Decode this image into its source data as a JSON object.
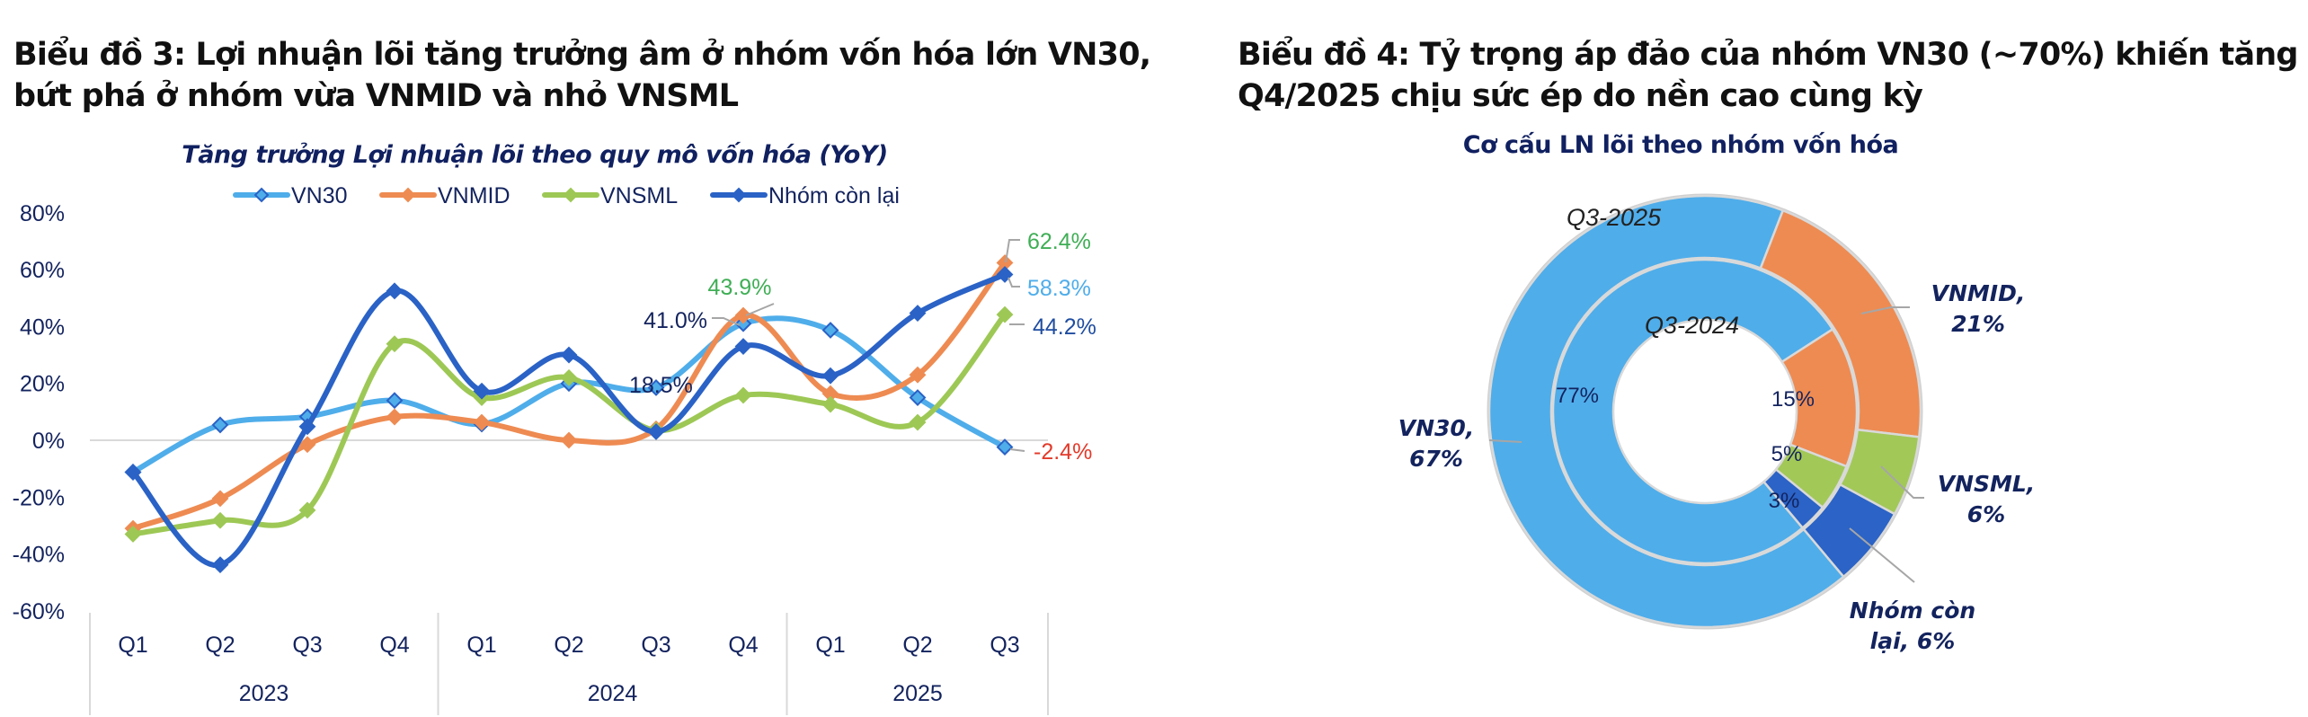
{
  "left": {
    "title_line1": "Biểu đồ 3: Lợi nhuận lõi tăng trưởng âm ở nhóm vốn hóa lớn VN30,",
    "title_line2": "bứt phá ở nhóm vừa VNMID và nhỏ VNSML"
  },
  "right": {
    "title_line1": "Biểu đồ 4: Tỷ trọng áp đảo của nhóm VN30 (~70%) khiến tăng trưởng",
    "title_line2": "Q4/2025 chịu sức ép do nền cao cùng kỳ"
  },
  "chart_data": [
    {
      "type": "line",
      "title": "Tăng trưởng Lợi nhuận lõi theo quy mô vốn hóa (YoY)",
      "xlabel": "",
      "ylabel": "",
      "ylim": [
        -60,
        80
      ],
      "yticks": [
        80,
        60,
        40,
        20,
        0,
        -20,
        -40,
        -60
      ],
      "ytick_labels": [
        "80%",
        "60%",
        "40%",
        "20%",
        "0%",
        "-20%",
        "-40%",
        "-60%"
      ],
      "categories": [
        "Q1",
        "Q2",
        "Q3",
        "Q4",
        "Q1",
        "Q2",
        "Q3",
        "Q4",
        "Q1",
        "Q2",
        "Q3"
      ],
      "year_groups": [
        {
          "label": "2023",
          "count": 4
        },
        {
          "label": "2024",
          "count": 4
        },
        {
          "label": "2025",
          "count": 3
        }
      ],
      "grid": "zero-line only",
      "legend_position": "top-center",
      "series": [
        {
          "name": "VN30",
          "color": "#4FADEA",
          "marker": "hollow-diamond",
          "values": [
            -11.2,
            5.4,
            8.3,
            14.0,
            5.7,
            20.0,
            18.5,
            41.0,
            38.7,
            15.0,
            -2.4
          ]
        },
        {
          "name": "VNMID",
          "color": "#EE8B52",
          "marker": "diamond",
          "values": [
            -31.0,
            -20.5,
            -1.5,
            8.2,
            6.3,
            0.0,
            4.0,
            43.9,
            16.4,
            23.0,
            62.4
          ]
        },
        {
          "name": "VNSML",
          "color": "#9DC855",
          "marker": "diamond",
          "values": [
            -33.0,
            -28.2,
            -24.6,
            33.9,
            15.0,
            22.0,
            3.5,
            15.8,
            12.6,
            6.3,
            44.2
          ]
        },
        {
          "name": "Nhóm còn lại",
          "color": "#2A62C6",
          "marker": "diamond",
          "values": [
            -11.2,
            -43.8,
            4.8,
            52.5,
            17.3,
            30.0,
            3.0,
            33.0,
            22.7,
            44.7,
            58.3
          ]
        }
      ],
      "annotations": [
        {
          "text": "18.5%",
          "category_index": 6,
          "series": "VN30",
          "color": "#13235E"
        },
        {
          "text": "41.0%",
          "category_index": 7,
          "series": "VN30",
          "color": "#13235E"
        },
        {
          "text": "43.9%",
          "category_index": 7,
          "series": "VNMID",
          "color": "#3FAE55"
        },
        {
          "text": "62.4%",
          "category_index": 10,
          "series": "VNMID",
          "color": "#3FAE55"
        },
        {
          "text": "58.3%",
          "category_index": 10,
          "series": "Nhóm còn lại",
          "color": "#4FADEA"
        },
        {
          "text": "44.2%",
          "category_index": 10,
          "series": "VNSML",
          "color": "#1F4DA0"
        },
        {
          "text": "-2.4%",
          "category_index": 10,
          "series": "VN30",
          "color": "#E23A2A"
        }
      ]
    },
    {
      "type": "pie",
      "subtype": "double-donut",
      "title": "Cơ cấu LN lõi theo nhóm vốn hóa",
      "categories": [
        "VN30",
        "VNMID",
        "VNSML",
        "Nhóm còn lại"
      ],
      "colors": [
        "#4FADEA",
        "#EE8B52",
        "#A2C858",
        "#2B63C6"
      ],
      "rings": [
        {
          "name": "Q3-2024",
          "position": "inner",
          "values": [
            77,
            15,
            5,
            3
          ],
          "labels": [
            "77%",
            "15%",
            "5%",
            "3%"
          ]
        },
        {
          "name": "Q3-2025",
          "position": "outer",
          "values": [
            67,
            21,
            6,
            6
          ],
          "labels": [
            "VN30,|67%",
            "VNMID,|21%",
            "VNSML,|6%",
            "Nhóm còn|lại, 6%"
          ]
        }
      ]
    }
  ]
}
